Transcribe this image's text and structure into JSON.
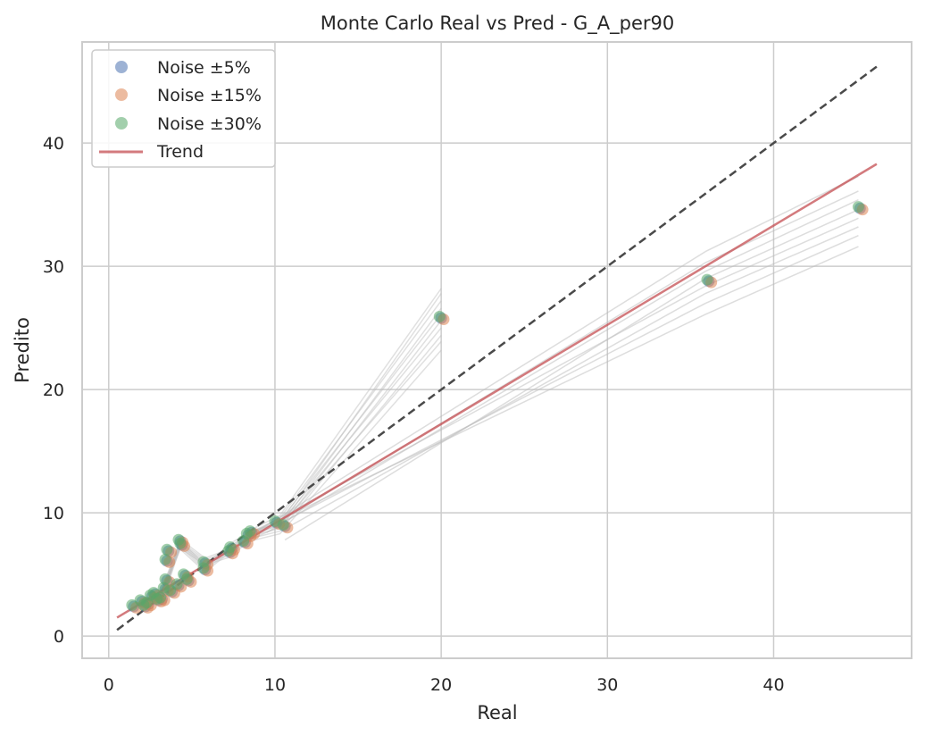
{
  "chart_data": {
    "type": "scatter",
    "title": "Monte Carlo Real vs Pred - G_A_per90",
    "xlabel": "Real",
    "ylabel": "Predito",
    "xlim": [
      -1.6,
      48.3
    ],
    "ylim": [
      -1.8,
      48.2
    ],
    "xticks": [
      "0",
      "10",
      "20",
      "30",
      "40"
    ],
    "xtick_values": [
      0,
      10,
      20,
      30,
      40
    ],
    "yticks": [
      "0",
      "10",
      "20",
      "30",
      "40"
    ],
    "ytick_values": [
      0,
      10,
      20,
      30,
      40
    ],
    "grid": true,
    "legend_position": "upper left",
    "series": [
      {
        "name": "Noise ±5%",
        "color": "#4c72b0"
      },
      {
        "name": "Noise ±15%",
        "color": "#dd8452"
      },
      {
        "name": "Noise ±30%",
        "color": "#55a868"
      }
    ],
    "points": [
      [
        1.5,
        2.4
      ],
      [
        2.0,
        2.8
      ],
      [
        2.2,
        2.4
      ],
      [
        2.4,
        2.6
      ],
      [
        2.6,
        3.2
      ],
      [
        2.8,
        3.4
      ],
      [
        3.0,
        2.9
      ],
      [
        3.2,
        3.0
      ],
      [
        3.4,
        3.8
      ],
      [
        3.5,
        4.5
      ],
      [
        3.5,
        6.1
      ],
      [
        3.6,
        6.9
      ],
      [
        3.8,
        3.6
      ],
      [
        4.2,
        4.1
      ],
      [
        4.3,
        7.7
      ],
      [
        4.4,
        7.4
      ],
      [
        4.6,
        4.9
      ],
      [
        4.8,
        4.5
      ],
      [
        5.8,
        5.4
      ],
      [
        5.8,
        5.9
      ],
      [
        7.3,
        6.8
      ],
      [
        7.4,
        7.1
      ],
      [
        8.2,
        7.6
      ],
      [
        8.4,
        8.2
      ],
      [
        8.6,
        8.4
      ],
      [
        10.1,
        9.2
      ],
      [
        10.6,
        8.9
      ],
      [
        20.0,
        25.8
      ],
      [
        36.1,
        28.8
      ],
      [
        45.2,
        34.7
      ]
    ],
    "trend": {
      "name": "Trend",
      "color": "#c44e52",
      "x": [
        0.5,
        46.2
      ],
      "y": [
        1.5,
        38.3
      ]
    },
    "identity_line": {
      "color": "#4a4a4a",
      "x": [
        0.5,
        46.2
      ],
      "y": [
        0.5,
        46.2
      ]
    },
    "simulation_lines": {
      "color": "#bbbbbb",
      "to_20": [
        23.2,
        23.9,
        24.4,
        25.0,
        25.6,
        26.1,
        26.6,
        27.2,
        27.8,
        28.2
      ],
      "to_36": [
        26.1,
        27.0,
        27.8,
        28.4,
        29.0,
        29.6,
        30.3,
        31.2
      ],
      "to_45": [
        31.6,
        32.5,
        33.2,
        33.9,
        34.6,
        35.4,
        36.1,
        37.3
      ]
    }
  }
}
